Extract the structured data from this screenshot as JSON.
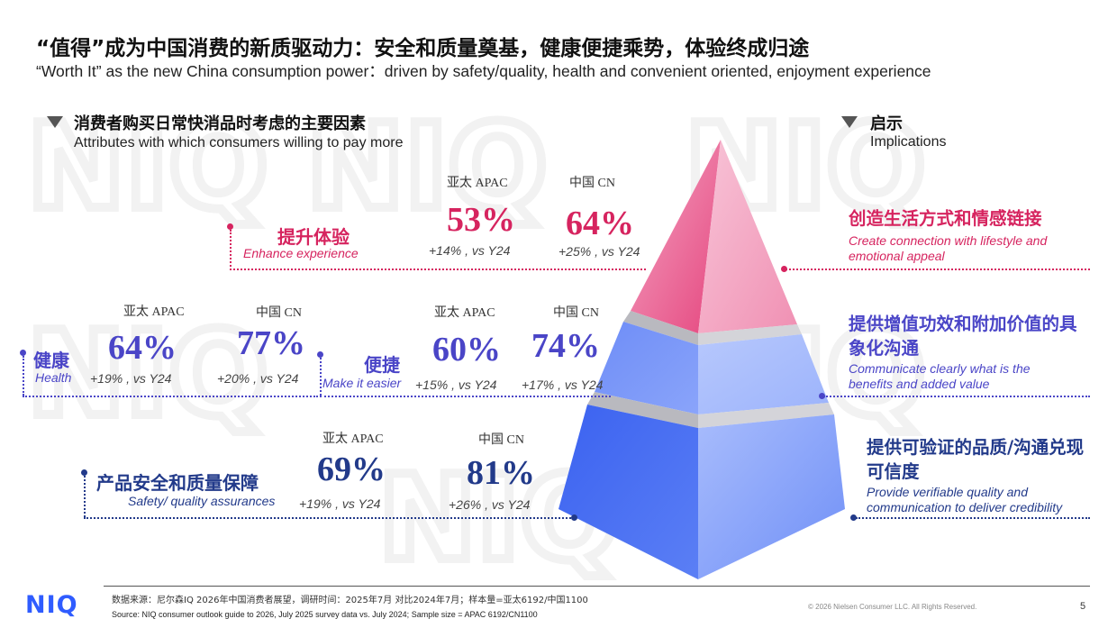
{
  "title": {
    "cn": "“值得”成为中国消费的新质驱动力：安全和质量奠基，健康便捷乘势，体验终成归途",
    "en": "“Worth It” as the new China consumption power：driven by safety/quality, health and convenient oriented, enjoyment experience"
  },
  "left_section": {
    "cn": "消费者购买日常快消品时考虑的主要因素",
    "en": "Attributes with which consumers willing to pay more"
  },
  "right_section": {
    "cn": "启示",
    "en": "Implications"
  },
  "attributes": [
    {
      "cn": "提升体验",
      "en": "Enhance experience",
      "apac_label": "亚太 APAC",
      "apac_value": "53%",
      "apac_delta": "+14% , vs Y24",
      "cn_label": "中国 CN",
      "cn_value": "64%",
      "cn_delta": "+25% , vs Y24",
      "color": "#d6245f"
    },
    {
      "cn": "健康",
      "en": "Health",
      "apac_label": "亚太 APAC",
      "apac_value": "64%",
      "apac_delta": "+19% , vs Y24",
      "cn_label": "中国 CN",
      "cn_value": "77%",
      "cn_delta": "+20% , vs Y24",
      "color": "#4a45c7"
    },
    {
      "cn": "便捷",
      "en": "Make it easier",
      "apac_label": "亚太 APAC",
      "apac_value": "60%",
      "apac_delta": "+15% , vs Y24",
      "cn_label": "中国 CN",
      "cn_value": "74%",
      "cn_delta": "+17% , vs Y24",
      "color": "#4a45c7"
    },
    {
      "cn": "产品安全和质量保障",
      "en": "Safety/ quality assurances",
      "apac_label": "亚太 APAC",
      "apac_value": "69%",
      "apac_delta": "+19% , vs Y24",
      "cn_label": "中国 CN",
      "cn_value": "81%",
      "cn_delta": "+26% , vs Y24",
      "color": "#223a8a"
    }
  ],
  "implications": [
    {
      "cn": "创造生活方式和情感链接",
      "en": "Create connection with lifestyle and emotional appeal",
      "color": "#d6245f"
    },
    {
      "cn": "提供增值功效和附加价值的具象化沟通",
      "en": "Communicate clearly what is the benefits and added value",
      "color": "#4a45c7"
    },
    {
      "cn": "提供可验证的品质/沟通兑现可信度",
      "en": "Provide verifiable quality and communication to deliver credibility",
      "color": "#223a8a"
    }
  ],
  "footer": {
    "logo": "NIQ",
    "source_cn": "数据来源：尼尔森IQ 2026年中国消费者展望，调研时间：2025年7月 对比2024年7月；样本量=亚太6192/中国1100",
    "source_en": "Source: NIQ consumer outlook guide to 2026, July 2025 survey data vs. July 2024;   Sample size = APAC 6192/CN1100",
    "copyright": "© 2026 Nielsen Consumer LLC. All Rights Reserved.",
    "page": "5"
  },
  "watermark": "NIQ",
  "colors": {
    "pink": "#d6245f",
    "purple": "#4a45c7",
    "navy": "#223a8a",
    "brand": "#2f5cff"
  }
}
